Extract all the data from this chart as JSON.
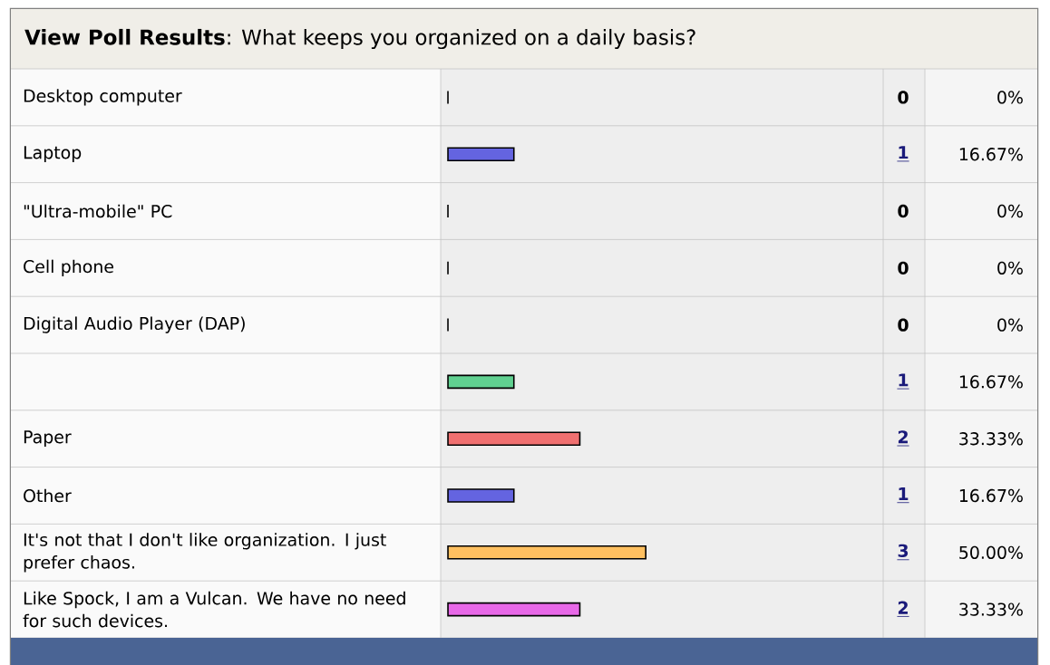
{
  "chart_data": {
    "type": "bar",
    "orientation": "horizontal",
    "title": "**View Poll Results**: What keeps you organized on a daily basis?",
    "categories": [
      "Desktop computer",
      "Laptop",
      "\"Ultra-mobile\" PC",
      "Cell phone",
      "Digital Audio Player (DAP)",
      null,
      "Paper",
      "Other",
      "It's not that I don't like organization. I just prefer chaos.",
      "Like Spock, I am a Vulcan. We have no need for such devices."
    ],
    "values": [
      0,
      1,
      0,
      0,
      0,
      1,
      2,
      1,
      3,
      2
    ],
    "colors": [
      "#e05050",
      "#6464e0",
      "#f0c050",
      "#e060e0",
      "#40c8d0",
      "#60d090",
      "#f07070",
      "#6464e0",
      "#ffc060",
      "#e868e8"
    ],
    "data_labels": true,
    "annotations": [
      "0%",
      "16.67%",
      "0%",
      "0%",
      "0%",
      "16.67%",
      "33.33%",
      "16.67%",
      "50.00%",
      "33.33%"
    ]
  }
}
